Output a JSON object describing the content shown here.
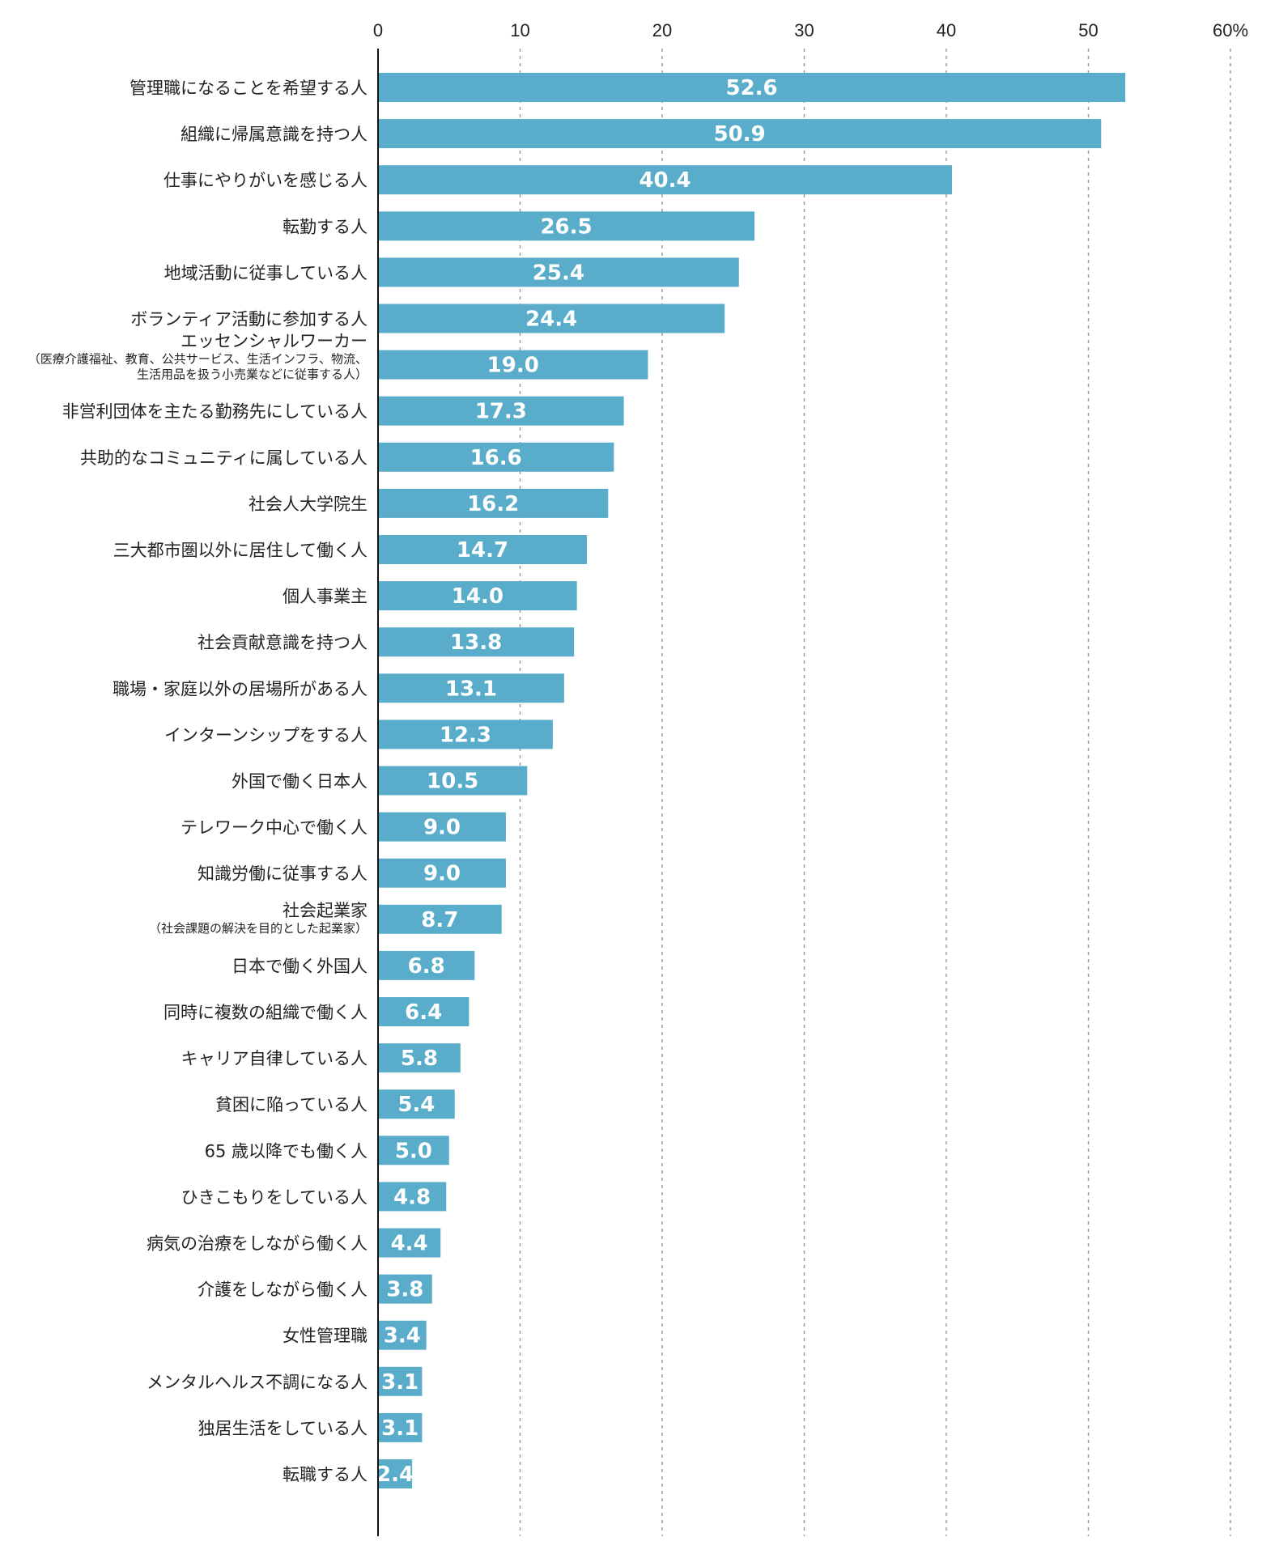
{
  "chart_data": {
    "type": "bar",
    "orientation": "horizontal",
    "xlim": [
      0,
      60
    ],
    "x_ticks": [
      "0",
      "10",
      "20",
      "30",
      "40",
      "50",
      "60%"
    ],
    "grid": "vertical dashed",
    "bar_color": "#5aadca",
    "categories": [
      {
        "label": "管理職になることを希望する人",
        "sub": []
      },
      {
        "label": "組織に帰属意識を持つ人",
        "sub": []
      },
      {
        "label": "仕事にやりがいを感じる人",
        "sub": []
      },
      {
        "label": "転勤する人",
        "sub": []
      },
      {
        "label": "地域活動に従事している人",
        "sub": []
      },
      {
        "label": "ボランティア活動に参加する人",
        "sub": []
      },
      {
        "label": "エッセンシャルワーカー",
        "sub": [
          "（医療介護福祉、教育、公共サービス、生活インフラ、物流、",
          "生活用品を扱う小売業などに従事する人）"
        ]
      },
      {
        "label": "非営利団体を主たる勤務先にしている人",
        "sub": []
      },
      {
        "label": "共助的なコミュニティに属している人",
        "sub": []
      },
      {
        "label": "社会人大学院生",
        "sub": []
      },
      {
        "label": "三大都市圏以外に居住して働く人",
        "sub": []
      },
      {
        "label": "個人事業主",
        "sub": []
      },
      {
        "label": "社会貢献意識を持つ人",
        "sub": []
      },
      {
        "label": "職場・家庭以外の居場所がある人",
        "sub": []
      },
      {
        "label": "インターンシップをする人",
        "sub": []
      },
      {
        "label": "外国で働く日本人",
        "sub": []
      },
      {
        "label": "テレワーク中心で働く人",
        "sub": []
      },
      {
        "label": "知識労働に従事する人",
        "sub": []
      },
      {
        "label": "社会起業家",
        "sub": [
          "（社会課題の解決を目的とした起業家）"
        ]
      },
      {
        "label": "日本で働く外国人",
        "sub": []
      },
      {
        "label": "同時に複数の組織で働く人",
        "sub": []
      },
      {
        "label": "キャリア自律している人",
        "sub": []
      },
      {
        "label": "貧困に陥っている人",
        "sub": []
      },
      {
        "label": "65 歳以降でも働く人",
        "sub": []
      },
      {
        "label": "ひきこもりをしている人",
        "sub": []
      },
      {
        "label": "病気の治療をしながら働く人",
        "sub": []
      },
      {
        "label": "介護をしながら働く人",
        "sub": []
      },
      {
        "label": "女性管理職",
        "sub": []
      },
      {
        "label": "メンタルヘルス不調になる人",
        "sub": []
      },
      {
        "label": "独居生活をしている人",
        "sub": []
      },
      {
        "label": "転職する人",
        "sub": []
      }
    ],
    "values": [
      52.6,
      50.9,
      40.4,
      26.5,
      25.4,
      24.4,
      19.0,
      17.3,
      16.6,
      16.2,
      14.7,
      14.0,
      13.8,
      13.1,
      12.3,
      10.5,
      9.0,
      9.0,
      8.7,
      6.8,
      6.4,
      5.8,
      5.4,
      5.0,
      4.8,
      4.4,
      3.8,
      3.4,
      3.1,
      3.1,
      2.4
    ],
    "value_labels": [
      "52.6",
      "50.9",
      "40.4",
      "26.5",
      "25.4",
      "24.4",
      "19.0",
      "17.3",
      "16.6",
      "16.2",
      "14.7",
      "14.0",
      "13.8",
      "13.1",
      "12.3",
      "10.5",
      "9.0",
      "9.0",
      "8.7",
      "6.8",
      "6.4",
      "5.8",
      "5.4",
      "5.0",
      "4.8",
      "4.4",
      "3.8",
      "3.4",
      "3.1",
      "3.1",
      "2.4"
    ]
  }
}
